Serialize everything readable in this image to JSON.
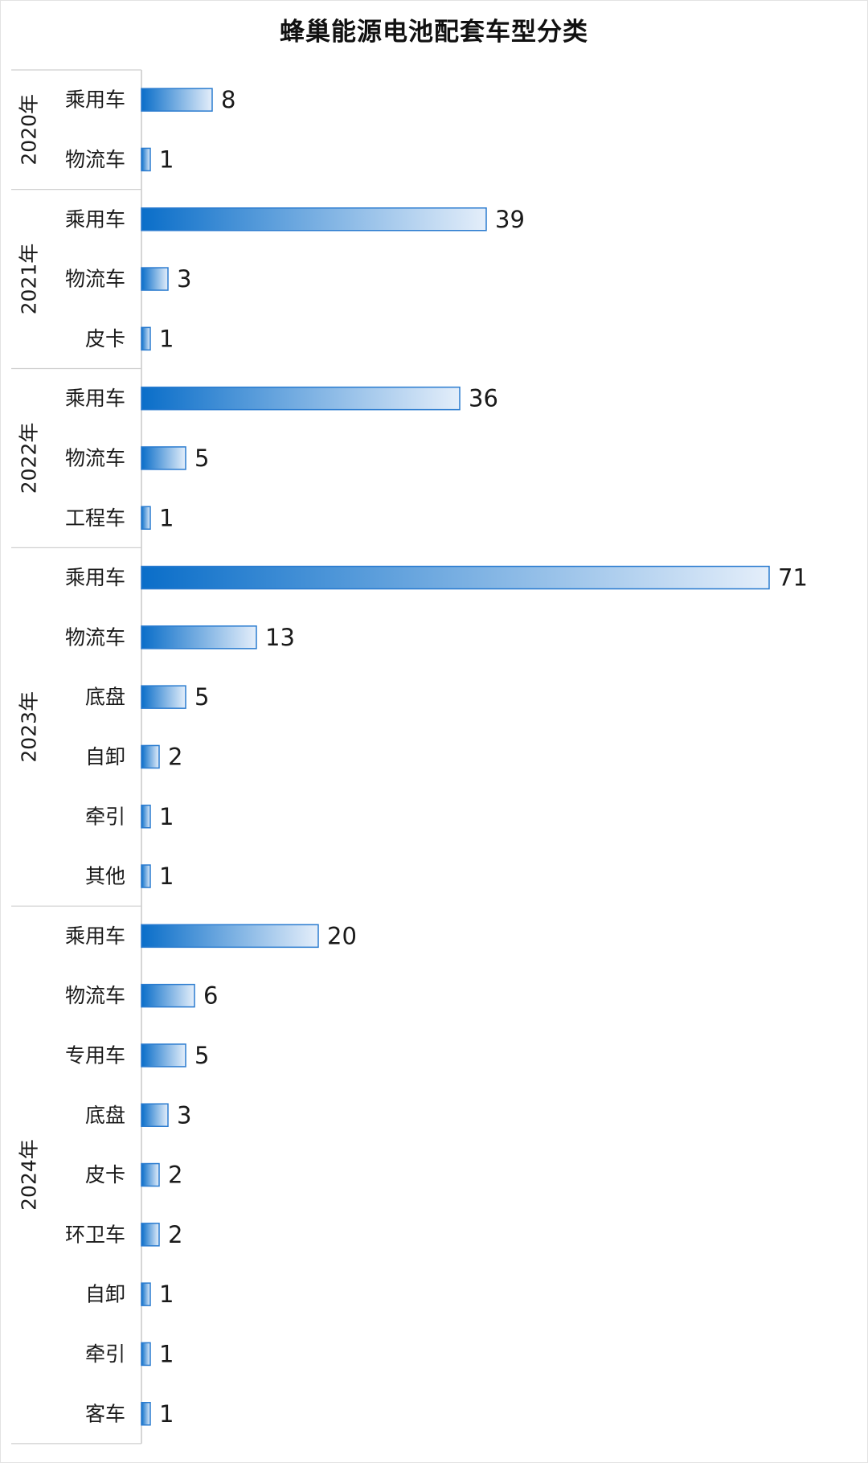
{
  "chart_data": {
    "type": "bar",
    "orientation": "horizontal",
    "title": "蜂巢能源电池配套车型分类",
    "colors": {
      "bar_start": "#0a6ec9",
      "bar_end": "#e4eefa",
      "bar_border": "#2a7bcf"
    },
    "groups": [
      {
        "year": "2020年",
        "items": [
          {
            "category": "乘用车",
            "value": 8
          },
          {
            "category": "物流车",
            "value": 1
          }
        ]
      },
      {
        "year": "2021年",
        "items": [
          {
            "category": "乘用车",
            "value": 39
          },
          {
            "category": "物流车",
            "value": 3
          },
          {
            "category": "皮卡",
            "value": 1
          }
        ]
      },
      {
        "year": "2022年",
        "items": [
          {
            "category": "乘用车",
            "value": 36
          },
          {
            "category": "物流车",
            "value": 5
          },
          {
            "category": "工程车",
            "value": 1
          }
        ]
      },
      {
        "year": "2023年",
        "items": [
          {
            "category": "乘用车",
            "value": 71
          },
          {
            "category": "物流车",
            "value": 13
          },
          {
            "category": "底盘",
            "value": 5
          },
          {
            "category": "自卸",
            "value": 2
          },
          {
            "category": "牵引",
            "value": 1
          },
          {
            "category": "其他",
            "value": 1
          }
        ]
      },
      {
        "year": "2024年",
        "items": [
          {
            "category": "乘用车",
            "value": 20
          },
          {
            "category": "物流车",
            "value": 6
          },
          {
            "category": "专用车",
            "value": 5
          },
          {
            "category": "底盘",
            "value": 3
          },
          {
            "category": "皮卡",
            "value": 2
          },
          {
            "category": "环卫车",
            "value": 2
          },
          {
            "category": "自卸",
            "value": 1
          },
          {
            "category": "牵引",
            "value": 1
          },
          {
            "category": "客车",
            "value": 1
          }
        ]
      }
    ]
  }
}
